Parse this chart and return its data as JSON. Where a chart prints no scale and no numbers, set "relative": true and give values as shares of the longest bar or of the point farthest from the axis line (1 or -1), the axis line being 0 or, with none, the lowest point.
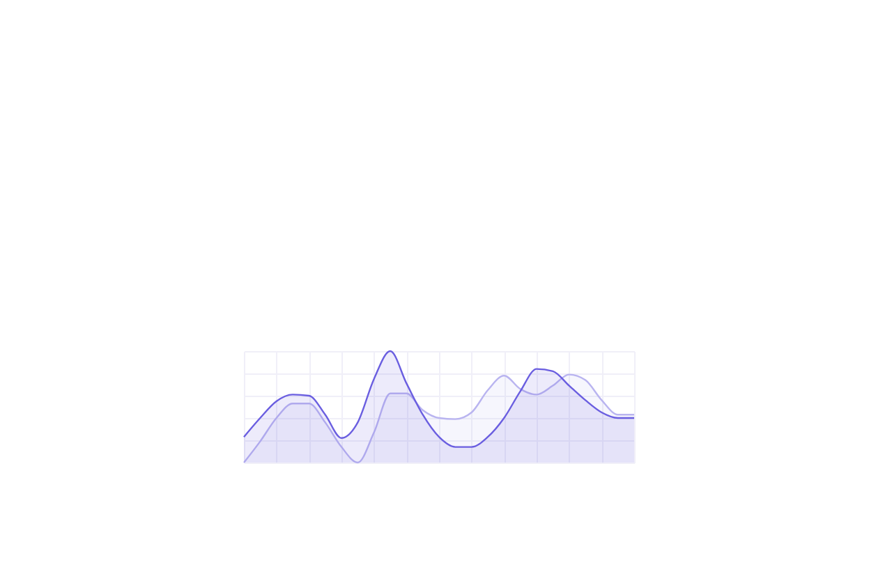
{
  "chart_data": {
    "type": "area",
    "relative": true,
    "grid": true,
    "categories": [
      null,
      null,
      null,
      null,
      null,
      null,
      null,
      null,
      null,
      null,
      null,
      null,
      null,
      null,
      null,
      null,
      null,
      null,
      null,
      null,
      null,
      null,
      null,
      null,
      null
    ],
    "series": [
      {
        "color": "#b9b4f0",
        "values": [
          0,
          0.19,
          0.4,
          0.53,
          0.53,
          0.36,
          0.14,
          0,
          0.27,
          0.62,
          0.62,
          0.47,
          0.4,
          0.39,
          0.45,
          0.65,
          0.78,
          0.66,
          0.61,
          0.69,
          0.79,
          0.74,
          0.56,
          0.43,
          0.43
        ]
      },
      {
        "color": "#6a5ee0",
        "values": [
          0.23,
          0.4,
          0.55,
          0.61,
          0.6,
          0.43,
          0.22,
          0.36,
          0.75,
          1.0,
          0.71,
          0.43,
          0.23,
          0.14,
          0.14,
          0.23,
          0.4,
          0.64,
          0.84,
          0.82,
          0.69,
          0.56,
          0.45,
          0.4,
          0.4
        ]
      }
    ]
  }
}
